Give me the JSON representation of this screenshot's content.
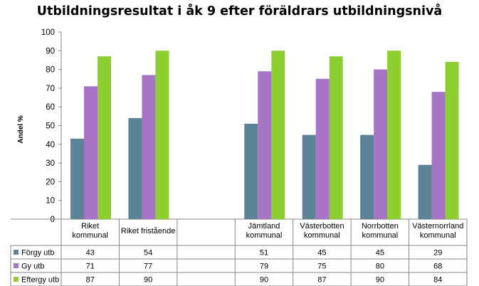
{
  "chart_data": {
    "type": "bar",
    "title": "Utbildningsresultat i åk 9 efter föräldrars utbildningsnivå",
    "ylabel": "Andel %",
    "xlabel": "",
    "ylim": [
      0,
      100
    ],
    "yticks": [
      0,
      10,
      20,
      30,
      40,
      50,
      60,
      70,
      80,
      90,
      100
    ],
    "grid": false,
    "legend_placement": "data-table-left",
    "categories": [
      [
        "Riket",
        "kommunal"
      ],
      [
        "Riket fristående"
      ],
      [
        ""
      ],
      [
        "Jämtland",
        "kommunal"
      ],
      [
        "Västerbotten",
        "kommunal"
      ],
      [
        "Norrbotten",
        "kommunal"
      ],
      [
        "Västernorrland",
        "kommunal"
      ]
    ],
    "series": [
      {
        "name": "Förgy utb",
        "color": "#5b8497",
        "values": [
          43,
          54,
          null,
          51,
          45,
          45,
          29
        ]
      },
      {
        "name": "Gy utb",
        "color": "#a774c6",
        "values": [
          71,
          77,
          null,
          79,
          75,
          80,
          68
        ]
      },
      {
        "name": "Eftergy utb",
        "color": "#8ccf2f",
        "values": [
          87,
          90,
          null,
          90,
          87,
          90,
          84
        ]
      }
    ]
  }
}
